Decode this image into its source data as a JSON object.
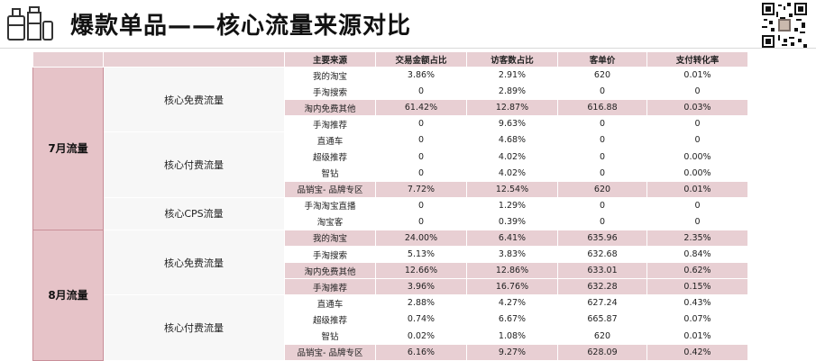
{
  "title": "爆款单品——核心流量来源对比",
  "table": {
    "headers": [
      "主要来源",
      "交易金额占比",
      "访客数占比",
      "客单价",
      "支付转化率"
    ],
    "months": [
      {
        "label": "7月流量",
        "groups": [
          {
            "label": "核心免费流量",
            "rows": [
              {
                "src": "我的淘宝",
                "v": [
                  "3.86%",
                  "2.91%",
                  "620",
                  "0.01%"
                ],
                "hl": false
              },
              {
                "src": "手淘搜索",
                "v": [
                  "0",
                  "2.89%",
                  "0",
                  "0"
                ],
                "hl": false
              },
              {
                "src": "淘内免费其他",
                "v": [
                  "61.42%",
                  "12.87%",
                  "616.88",
                  "0.03%"
                ],
                "hl": true
              },
              {
                "src": "手淘推荐",
                "v": [
                  "0",
                  "9.63%",
                  "0",
                  "0"
                ],
                "hl": false
              }
            ]
          },
          {
            "label": "核心付费流量",
            "rows": [
              {
                "src": "直通车",
                "v": [
                  "0",
                  "4.68%",
                  "0",
                  "0"
                ],
                "hl": false
              },
              {
                "src": "超级推荐",
                "v": [
                  "0",
                  "4.02%",
                  "0",
                  "0.00%"
                ],
                "hl": false
              },
              {
                "src": "智钻",
                "v": [
                  "0",
                  "4.02%",
                  "0",
                  "0.00%"
                ],
                "hl": false
              },
              {
                "src": "品销宝- 品牌专区",
                "v": [
                  "7.72%",
                  "12.54%",
                  "620",
                  "0.01%"
                ],
                "hl": true
              }
            ]
          },
          {
            "label": "核心CPS流量",
            "rows": [
              {
                "src": "手淘淘宝直播",
                "v": [
                  "0",
                  "1.29%",
                  "0",
                  "0"
                ],
                "hl": false
              },
              {
                "src": "淘宝客",
                "v": [
                  "0",
                  "0.39%",
                  "0",
                  "0"
                ],
                "hl": false
              }
            ]
          }
        ]
      },
      {
        "label": "8月流量",
        "groups": [
          {
            "label": "核心免费流量",
            "rows": [
              {
                "src": "我的淘宝",
                "v": [
                  "24.00%",
                  "6.41%",
                  "635.96",
                  "2.35%"
                ],
                "hl": true
              },
              {
                "src": "手淘搜索",
                "v": [
                  "5.13%",
                  "3.83%",
                  "632.68",
                  "0.84%"
                ],
                "hl": false
              },
              {
                "src": "淘内免费其他",
                "v": [
                  "12.66%",
                  "12.86%",
                  "633.01",
                  "0.62%"
                ],
                "hl": true
              },
              {
                "src": "手淘推荐",
                "v": [
                  "3.96%",
                  "16.76%",
                  "632.28",
                  "0.15%"
                ],
                "hl": true
              }
            ]
          },
          {
            "label": "核心付费流量",
            "rows": [
              {
                "src": "直通车",
                "v": [
                  "2.88%",
                  "4.27%",
                  "627.24",
                  "0.43%"
                ],
                "hl": false
              },
              {
                "src": "超级推荐",
                "v": [
                  "0.74%",
                  "6.67%",
                  "665.87",
                  "0.07%"
                ],
                "hl": false
              },
              {
                "src": "智钻",
                "v": [
                  "0.02%",
                  "1.08%",
                  "620",
                  "0.01%"
                ],
                "hl": false
              },
              {
                "src": "品销宝- 品牌专区",
                "v": [
                  "6.16%",
                  "9.27%",
                  "628.09",
                  "0.42%"
                ],
                "hl": true
              }
            ]
          }
        ]
      }
    ]
  }
}
